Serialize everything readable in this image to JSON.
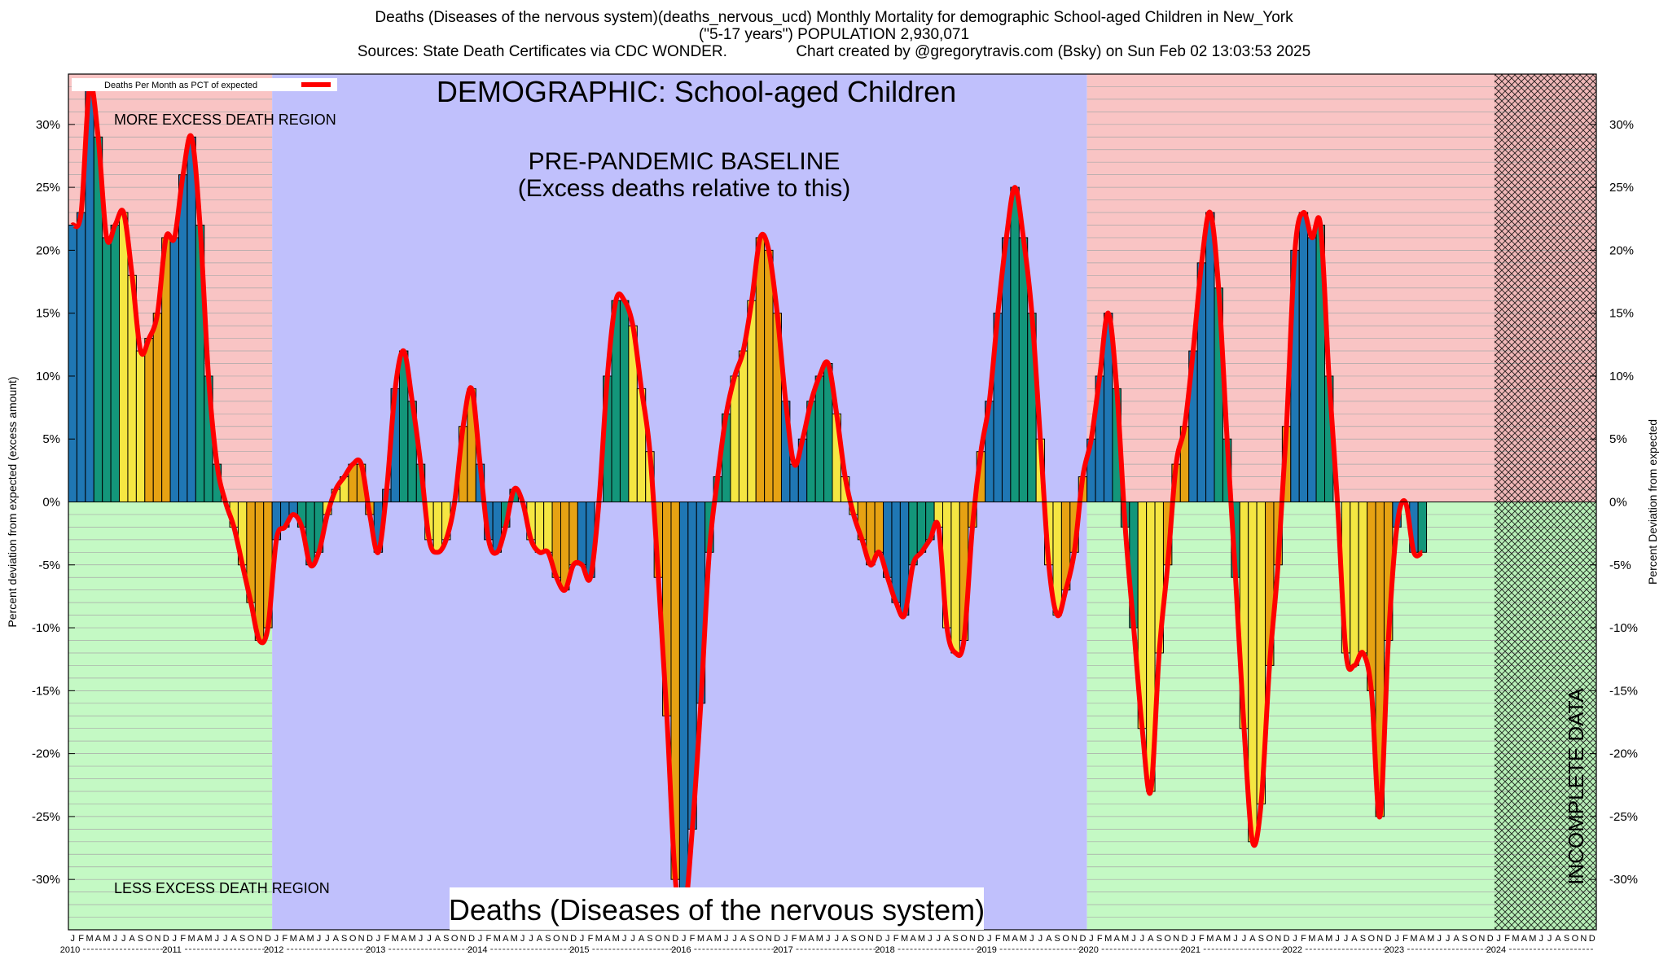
{
  "title_lines": [
    "Deaths (Diseases of the nervous system)(deaths_nervous_ucd) Monthly Mortality for demographic School-aged Children in New_York",
    "(\"5-17 years\") POPULATION 2,930,071",
    "Sources: State Death Certificates via CDC WONDER.                Chart created by @gregorytravis.com (Bsky) on Sun Feb 02 13:03:53 2025"
  ],
  "chart_data": {
    "type": "bar",
    "x_start": "2010-01",
    "x_end": "2024-12",
    "ylabel_left": "Percent deviation from expected (excess amount)",
    "ylabel_right": "Percent Deviation from expected",
    "ylim": [
      -34,
      34
    ],
    "yticks": [
      -30,
      -25,
      -20,
      -15,
      -10,
      -5,
      0,
      5,
      10,
      15,
      20,
      25,
      30
    ],
    "tick_suffix": "%",
    "legend": {
      "label": "Deaths Per Month as PCT of expected",
      "position": "top-left"
    },
    "month_letters": [
      "J",
      "F",
      "M",
      "A",
      "M",
      "J",
      "J",
      "A",
      "S",
      "O",
      "N",
      "D"
    ],
    "year_labels": [
      "2010",
      "2011",
      "2012",
      "2013",
      "2014",
      "2015",
      "2016",
      "2017",
      "2018",
      "2019",
      "2020",
      "2021",
      "2022",
      "2023",
      "2024"
    ],
    "regions": [
      {
        "label": "MORE EXCESS DEATH REGION",
        "from": "2010-01",
        "to": "2011-12",
        "sign": "positive"
      },
      {
        "label": "LESS EXCESS DEATH REGION",
        "from": "2010-01",
        "to": "2011-12",
        "sign": "negative"
      },
      {
        "label": "PRE-PANDEMIC BASELINE",
        "sublabel": "(Excess deaths relative to this)",
        "from": "2012-01",
        "to": "2019-12",
        "sign": "both"
      },
      {
        "label": "INCOMPLETE DATA",
        "from": "2024-01",
        "to": "2024-12",
        "sign": "both"
      }
    ],
    "annotations": {
      "demographic": "DEMOGRAPHIC: School-aged Children",
      "cause": "Deaths (Diseases of the nervous system)"
    },
    "values": [
      22,
      23,
      33,
      29,
      21,
      22,
      23,
      18,
      12,
      13,
      15,
      21,
      21,
      26,
      29,
      22,
      10,
      3,
      0,
      -2,
      -5,
      -8,
      -11,
      -10,
      -3,
      -2,
      -1,
      -2,
      -5,
      -4,
      -1,
      1,
      2,
      3,
      3,
      -1,
      -4,
      1,
      9,
      12,
      8,
      3,
      -3,
      -4,
      -3,
      0,
      6,
      9,
      3,
      -3,
      -4,
      -2,
      1,
      0,
      -3,
      -4,
      -4,
      -6,
      -7,
      -5,
      -5,
      -6,
      0,
      10,
      16,
      16,
      14,
      9,
      4,
      -6,
      -17,
      -30,
      -33,
      -26,
      -16,
      -4,
      2,
      7,
      10,
      12,
      16,
      21,
      20,
      15,
      8,
      3,
      5,
      8,
      10,
      11,
      7,
      2,
      -1,
      -3,
      -5,
      -4,
      -6,
      -8,
      -9,
      -5,
      -4,
      -3,
      -2,
      -10,
      -12,
      -11,
      -2,
      4,
      8,
      15,
      21,
      25,
      21,
      15,
      5,
      -5,
      -9,
      -7,
      -4,
      2,
      5,
      10,
      15,
      9,
      -2,
      -10,
      -18,
      -23,
      -12,
      -5,
      3,
      6,
      12,
      19,
      23,
      17,
      5,
      -6,
      -18,
      -27,
      -24,
      -13,
      -5,
      6,
      20,
      23,
      21,
      22,
      10,
      0,
      -12,
      -13,
      -12,
      -15,
      -25,
      -11,
      -2,
      0,
      -4,
      -4
    ]
  }
}
